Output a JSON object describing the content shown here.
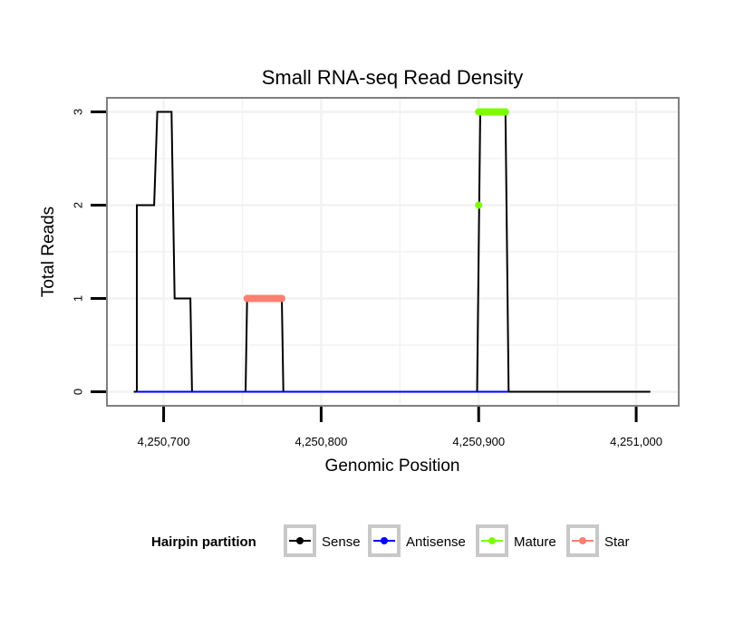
{
  "chart_data": {
    "type": "line",
    "title": "Small RNA-seq Read Density",
    "xlabel": "Genomic Position",
    "ylabel": "Total Reads",
    "xlim": [
      4250664,
      4251027
    ],
    "ylim": [
      -0.15,
      3.15
    ],
    "x_ticks": [
      4250700,
      4250800,
      4250900,
      4251000
    ],
    "x_tick_labels": [
      "4,250,700",
      "4,250,800",
      "4,250,900",
      "4,251,000"
    ],
    "y_ticks": [
      0,
      1,
      2,
      3
    ],
    "y_tick_labels": [
      "0",
      "1",
      "2",
      "3"
    ],
    "grid": true,
    "legend": {
      "title": "Hairpin partition",
      "position": "bottom",
      "entries": [
        {
          "label": "Sense",
          "color": "#000000"
        },
        {
          "label": "Antisense",
          "color": "#0000FF"
        },
        {
          "label": "Mature",
          "color": "#7CFC00"
        },
        {
          "label": "Star",
          "color": "#FA8072"
        }
      ]
    },
    "series": [
      {
        "name": "Sense",
        "color": "#000000",
        "style": "line",
        "points": [
          [
            4250681,
            0
          ],
          [
            4250683,
            0
          ],
          [
            4250683,
            2
          ],
          [
            4250694,
            2
          ],
          [
            4250696,
            3
          ],
          [
            4250705,
            3
          ],
          [
            4250707,
            1
          ],
          [
            4250717,
            1
          ],
          [
            4250718,
            0
          ],
          [
            4250752,
            0
          ],
          [
            4250753,
            1
          ],
          [
            4250775,
            1
          ],
          [
            4250776,
            0
          ],
          [
            4250899,
            0
          ],
          [
            4250901,
            3
          ],
          [
            4250917,
            3
          ],
          [
            4250919,
            0
          ],
          [
            4251009,
            0
          ]
        ]
      },
      {
        "name": "Antisense",
        "color": "#0000FF",
        "style": "line",
        "points": [
          [
            4250683,
            0
          ],
          [
            4250718,
            0
          ],
          [
            4250752,
            0
          ],
          [
            4250776,
            0
          ],
          [
            4250899,
            0
          ],
          [
            4250919,
            0
          ]
        ]
      },
      {
        "name": "Mature",
        "color": "#7CFC00",
        "style": "segment",
        "segments": [
          [
            [
              4250900,
              3
            ],
            [
              4250917,
              3
            ]
          ]
        ],
        "points": [
          [
            4250900,
            2
          ]
        ]
      },
      {
        "name": "Star",
        "color": "#FA8072",
        "style": "segment",
        "segments": [
          [
            [
              4250753,
              1
            ],
            [
              4250775,
              1
            ]
          ]
        ],
        "points": []
      }
    ]
  }
}
